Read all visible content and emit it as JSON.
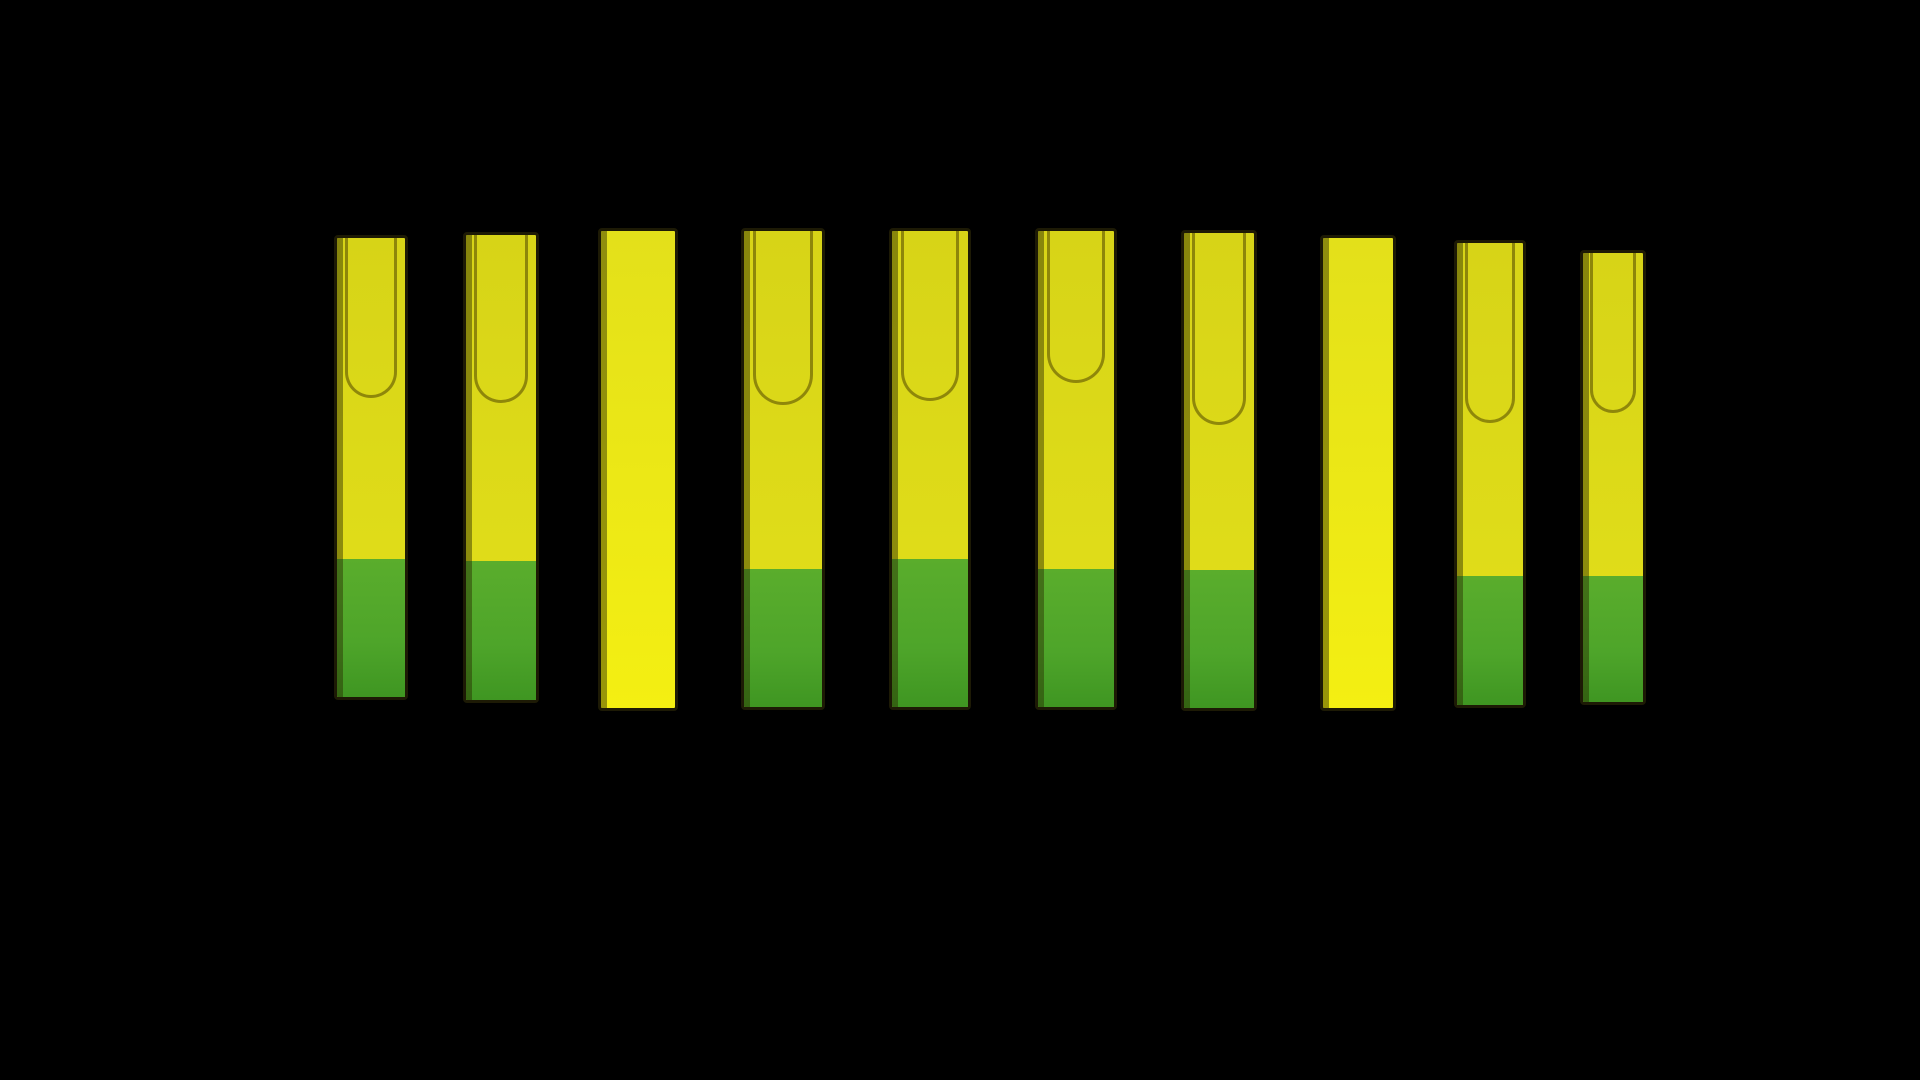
{
  "scene": {
    "background_color": "#000000",
    "subject": "row-of-test-tubes",
    "colors": {
      "yellow_liquid": "#e3e01a",
      "yellow_bright": "#f4ef12",
      "green_liquid": "#4ea52a",
      "tube_rim": "#1d1a05"
    }
  },
  "tubes": [
    {
      "id": 1,
      "bottom_color": "green",
      "green_fraction": 0.3
    },
    {
      "id": 2,
      "bottom_color": "green",
      "green_fraction": 0.3
    },
    {
      "id": 3,
      "bottom_color": "yellow",
      "green_fraction": 0.0
    },
    {
      "id": 4,
      "bottom_color": "green",
      "green_fraction": 0.29
    },
    {
      "id": 5,
      "bottom_color": "green",
      "green_fraction": 0.31
    },
    {
      "id": 6,
      "bottom_color": "green",
      "green_fraction": 0.29
    },
    {
      "id": 7,
      "bottom_color": "green",
      "green_fraction": 0.29
    },
    {
      "id": 8,
      "bottom_color": "yellow",
      "green_fraction": 0.0
    },
    {
      "id": 9,
      "bottom_color": "green",
      "green_fraction": 0.28
    },
    {
      "id": 10,
      "bottom_color": "green",
      "green_fraction": 0.28
    }
  ]
}
